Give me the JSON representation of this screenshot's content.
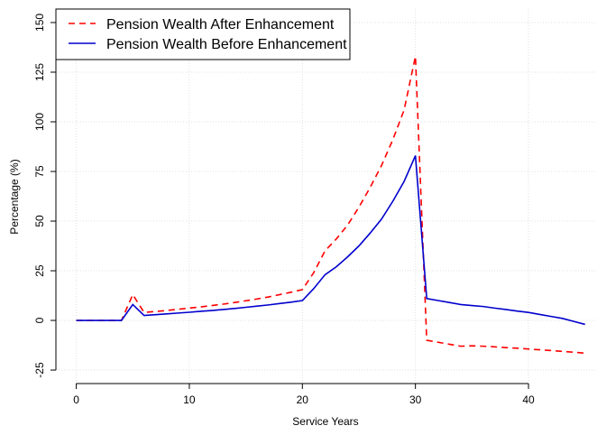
{
  "chart_data": {
    "type": "line",
    "x_label": "Service Years",
    "y_label": "Percentage (%)",
    "x": [
      0,
      1,
      2,
      3,
      4,
      5,
      6,
      7,
      8,
      9,
      10,
      11,
      12,
      13,
      14,
      15,
      16,
      17,
      18,
      19,
      20,
      21,
      22,
      23,
      24,
      25,
      26,
      27,
      28,
      29,
      30,
      31,
      32,
      33,
      34,
      35,
      36,
      37,
      38,
      39,
      40,
      41,
      42,
      43,
      44,
      45
    ],
    "series": [
      {
        "name": "Pension Wealth After Enhancement",
        "color": "#ff0000",
        "linestyle": "dashed",
        "values": [
          0,
          0,
          0,
          0,
          0,
          13,
          4,
          4.5,
          5,
          5.6,
          6.2,
          6.8,
          7.5,
          8.2,
          9,
          9.9,
          10.8,
          11.8,
          13,
          14.2,
          15.5,
          24,
          35,
          41,
          48,
          57,
          67,
          78,
          91,
          106,
          133,
          -10,
          -11,
          -12,
          -13,
          -12.8,
          -13,
          -13.3,
          -13.7,
          -14,
          -14.4,
          -14.8,
          -15.2,
          -15.6,
          -16,
          -16.5
        ]
      },
      {
        "name": "Pension Wealth Before Enhancement",
        "color": "#0000cd",
        "linestyle": "solid",
        "values": [
          0,
          0,
          0,
          0,
          0,
          8,
          2.5,
          2.9,
          3.3,
          3.7,
          4.1,
          4.6,
          5,
          5.5,
          6,
          6.6,
          7.2,
          7.8,
          8.5,
          9.2,
          10,
          16,
          23,
          27,
          32,
          37.5,
          44,
          51,
          60,
          70,
          83,
          11,
          10,
          9,
          8,
          7.5,
          7,
          6.2,
          5.5,
          4.7,
          4,
          3,
          2,
          1,
          -0.5,
          -2
        ]
      }
    ],
    "xlim": [
      -1.8,
      45.9
    ],
    "xticks": [
      0,
      10,
      20,
      30,
      40
    ],
    "ylim": [
      -31.8,
      156.8
    ],
    "yticks": [
      -25,
      0,
      25,
      50,
      75,
      100,
      125,
      150
    ],
    "grid": true,
    "legend": "top-left"
  }
}
